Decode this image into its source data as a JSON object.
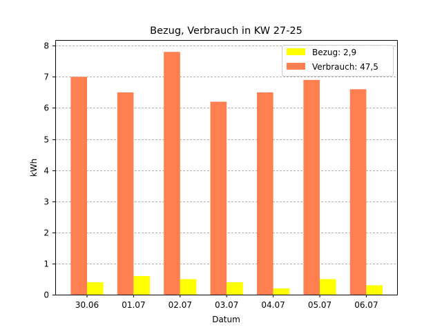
{
  "chart_data": {
    "type": "bar",
    "title": "Bezug, Verbrauch in KW 27-25",
    "xlabel": "Datum",
    "ylabel": "kWh",
    "ylim": [
      0,
      8.2
    ],
    "yticks": [
      0,
      1,
      2,
      3,
      4,
      5,
      6,
      7,
      8
    ],
    "grid": "y dashed",
    "legend_position": "top-right",
    "categories": [
      "30.06",
      "01.07",
      "02.07",
      "03.07",
      "04.07",
      "05.07",
      "06.07"
    ],
    "series": [
      {
        "name": "Verbrauch",
        "legend": "Verbrauch: 47,5",
        "color": "#ff7f50",
        "values": [
          7.0,
          6.5,
          7.8,
          6.2,
          6.5,
          6.9,
          6.6
        ]
      },
      {
        "name": "Bezug",
        "legend": "Bezug: 2,9",
        "color": "#ffff00",
        "values": [
          0.4,
          0.6,
          0.5,
          0.4,
          0.2,
          0.5,
          0.3
        ]
      }
    ]
  }
}
